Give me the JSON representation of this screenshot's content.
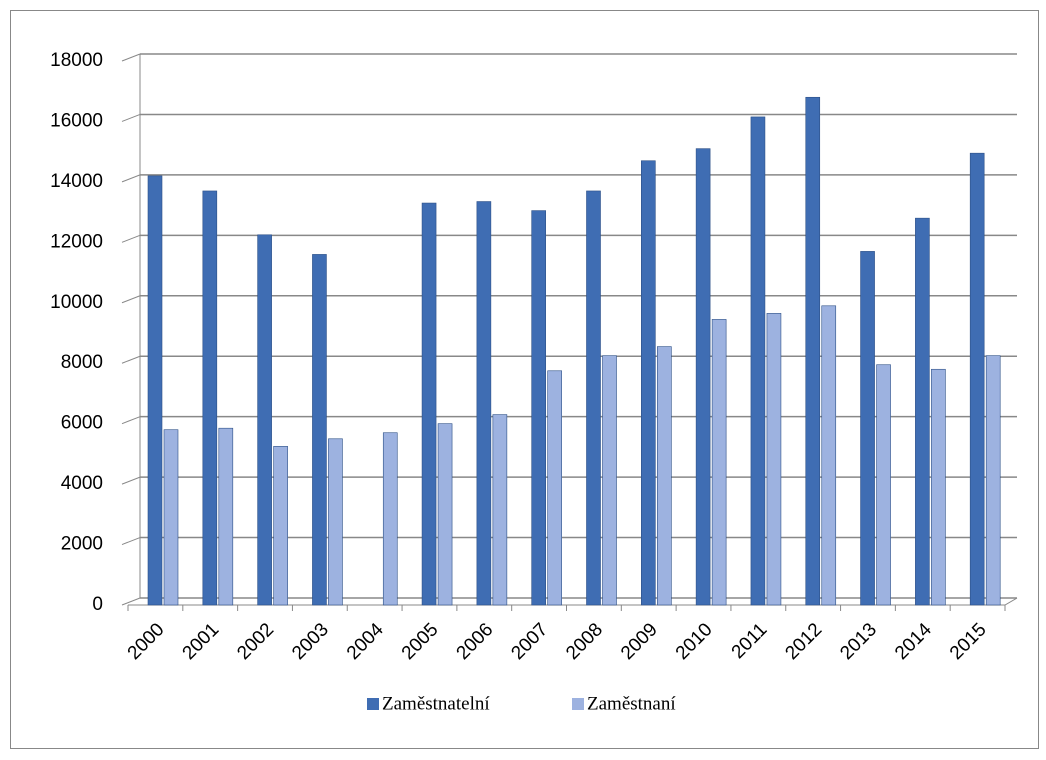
{
  "chart_data": {
    "type": "bar",
    "categories": [
      "2000",
      "2001",
      "2002",
      "2003",
      "2004",
      "2005",
      "2006",
      "2007",
      "2008",
      "2009",
      "2010",
      "2011",
      "2012",
      "2013",
      "2014",
      "2015"
    ],
    "series": [
      {
        "name": "Zaměstnatelní",
        "color": "#3f6db3",
        "values": [
          14200,
          13700,
          12250,
          11600,
          0,
          13300,
          13350,
          13050,
          13700,
          14700,
          15100,
          16150,
          16800,
          11700,
          12800,
          14950
        ]
      },
      {
        "name": "Zaměstnaní",
        "color": "#9db2e0",
        "values": [
          5800,
          5850,
          5250,
          5500,
          5700,
          6000,
          6300,
          7750,
          8250,
          8550,
          9450,
          9650,
          9900,
          7950,
          7800,
          8250
        ]
      }
    ],
    "ylim": [
      0,
      18000
    ],
    "yticks": [
      0,
      2000,
      4000,
      6000,
      8000,
      10000,
      12000,
      14000,
      16000,
      18000
    ],
    "grid": true,
    "legend": "bottom"
  }
}
